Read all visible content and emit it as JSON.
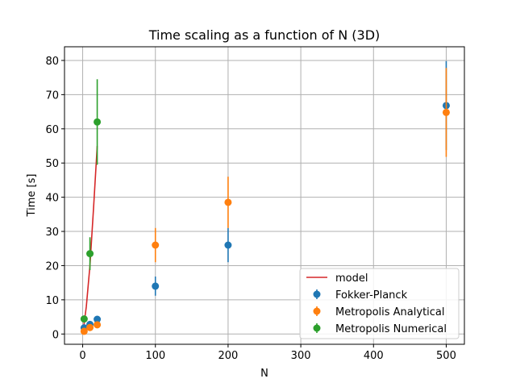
{
  "chart_data": {
    "type": "scatter",
    "title": "Time scaling as a function of N (3D)",
    "xlabel": "N",
    "ylabel": "Time [s]",
    "xlim": [
      -25,
      525
    ],
    "ylim": [
      -3,
      84
    ],
    "xticks": [
      0,
      100,
      200,
      300,
      400,
      500
    ],
    "yticks": [
      0,
      10,
      20,
      30,
      40,
      50,
      60,
      70,
      80
    ],
    "grid": true,
    "legend_position": "lower-right",
    "series": [
      {
        "name": "model",
        "kind": "line",
        "color": "#d62728",
        "x": [
          1,
          5,
          10,
          15,
          20
        ],
        "y": [
          1.5,
          8,
          20,
          37,
          55
        ]
      },
      {
        "name": "Fokker-Planck",
        "kind": "errorbar",
        "color": "#1f77b4",
        "x": [
          2,
          10,
          20,
          100,
          200,
          500
        ],
        "y": [
          1.8,
          2.8,
          4.3,
          14.0,
          26.0,
          66.8
        ],
        "err": [
          0.4,
          0.4,
          0.5,
          2.8,
          5.0,
          13.0
        ]
      },
      {
        "name": "Metropolis Analytical",
        "kind": "errorbar",
        "color": "#ff7f0e",
        "x": [
          2,
          10,
          20,
          100,
          200,
          500
        ],
        "y": [
          0.8,
          1.9,
          2.7,
          26.0,
          38.5,
          64.8
        ],
        "err": [
          0.3,
          0.3,
          0.4,
          5.0,
          7.5,
          13.0
        ]
      },
      {
        "name": "Metropolis Numerical",
        "kind": "errorbar",
        "color": "#2ca02c",
        "x": [
          2,
          10,
          20
        ],
        "y": [
          4.4,
          23.5,
          62.0
        ],
        "err": [
          1.0,
          4.8,
          12.5
        ]
      }
    ]
  }
}
